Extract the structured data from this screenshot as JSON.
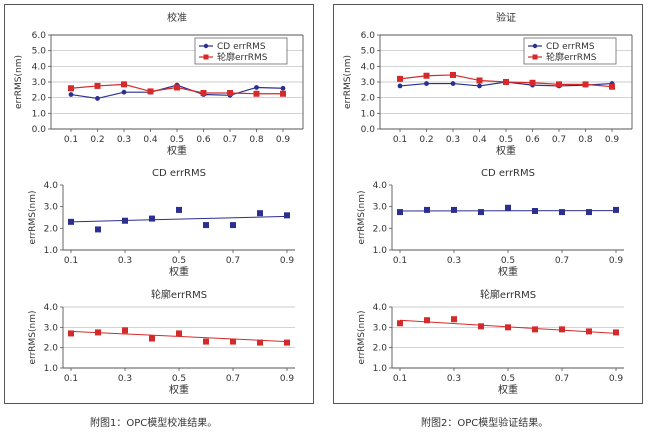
{
  "captions": {
    "left": "附图1：OPC模型校准结果。",
    "right": "附图2：OPC模型验证结果。"
  },
  "colors": {
    "cd": "#2b2f8f",
    "contour": "#d42a2a",
    "trend": "#2b2f8f",
    "trend_red": "#d42a2a",
    "grid": "#bbbbbb"
  },
  "chart_data": [
    {
      "id": "cal-combined",
      "type": "line",
      "title": "校准",
      "xlabel": "权重",
      "ylabel": "errRMS(nm)",
      "x": [
        0.1,
        0.2,
        0.3,
        0.4,
        0.5,
        0.6,
        0.7,
        0.8,
        0.9
      ],
      "xticks": [
        "0.1",
        "0.2",
        "0.3",
        "0.4",
        "0.5",
        "0.6",
        "0.7",
        "0.8",
        "0.9"
      ],
      "yticks": [
        "0.0",
        "1.0",
        "2.0",
        "3.0",
        "4.0",
        "5.0",
        "6.0"
      ],
      "ylim": [
        0,
        6
      ],
      "grid": true,
      "legend": "top-right",
      "series": [
        {
          "name": "CD errRMS",
          "marker": "circle",
          "color_key": "cd",
          "values": [
            2.2,
            1.95,
            2.35,
            2.35,
            2.8,
            2.2,
            2.15,
            2.65,
            2.6
          ]
        },
        {
          "name": "轮廓errRMS",
          "marker": "square",
          "color_key": "contour",
          "values": [
            2.6,
            2.75,
            2.85,
            2.4,
            2.65,
            2.3,
            2.3,
            2.25,
            2.25
          ]
        }
      ]
    },
    {
      "id": "cal-cd",
      "type": "scatter",
      "title": "CD errRMS",
      "xlabel": "权重",
      "ylabel": "errRMS(nm)",
      "x": [
        0.1,
        0.2,
        0.3,
        0.4,
        0.5,
        0.6,
        0.7,
        0.8,
        0.9
      ],
      "xticks": [
        "0.1",
        "0.3",
        "0.5",
        "0.7",
        "0.9"
      ],
      "yticks": [
        "1.0",
        "2.0",
        "3.0",
        "4.0"
      ],
      "ylim": [
        1,
        4
      ],
      "grid": false,
      "series": [
        {
          "marker": "square",
          "color_key": "cd",
          "values": [
            2.3,
            1.95,
            2.35,
            2.45,
            2.85,
            2.15,
            2.15,
            2.7,
            2.6
          ],
          "trend": [
            2.3,
            2.55
          ],
          "trend_color_key": "trend"
        }
      ]
    },
    {
      "id": "cal-contour",
      "type": "scatter",
      "title": "轮廓errRMS",
      "xlabel": "权重",
      "ylabel": "errRMS(nm)",
      "x": [
        0.1,
        0.2,
        0.3,
        0.4,
        0.5,
        0.6,
        0.7,
        0.8,
        0.9
      ],
      "xticks": [
        "0.1",
        "0.3",
        "0.5",
        "0.7",
        "0.9"
      ],
      "yticks": [
        "1.0",
        "2.0",
        "3.0",
        "4.0"
      ],
      "ylim": [
        1,
        4
      ],
      "grid": true,
      "series": [
        {
          "marker": "square",
          "color_key": "contour",
          "values": [
            2.7,
            2.75,
            2.85,
            2.45,
            2.7,
            2.3,
            2.3,
            2.25,
            2.25
          ],
          "trend": [
            2.8,
            2.3
          ],
          "trend_color_key": "trend_red"
        }
      ]
    },
    {
      "id": "val-combined",
      "type": "line",
      "title": "验证",
      "xlabel": "权重",
      "ylabel": "errRMS(nm)",
      "x": [
        0.1,
        0.2,
        0.3,
        0.4,
        0.5,
        0.6,
        0.7,
        0.8,
        0.9
      ],
      "xticks": [
        "0.1",
        "0.2",
        "0.3",
        "0.4",
        "0.5",
        "0.6",
        "0.7",
        "0.8",
        "0.9"
      ],
      "yticks": [
        "0.0",
        "1.0",
        "2.0",
        "3.0",
        "4.0",
        "5.0",
        "6.0"
      ],
      "ylim": [
        0,
        6
      ],
      "grid": true,
      "legend": "top-right",
      "series": [
        {
          "name": "CD errRMS",
          "marker": "circle",
          "color_key": "cd",
          "values": [
            2.75,
            2.9,
            2.9,
            2.75,
            3.0,
            2.8,
            2.75,
            2.8,
            2.9
          ]
        },
        {
          "name": "轮廓errRMS",
          "marker": "square",
          "color_key": "contour",
          "values": [
            3.2,
            3.4,
            3.45,
            3.1,
            3.0,
            2.95,
            2.85,
            2.85,
            2.7
          ]
        }
      ]
    },
    {
      "id": "val-cd",
      "type": "scatter",
      "title": "CD errRMS",
      "xlabel": "权重",
      "ylabel": "errRMS(nm)",
      "x": [
        0.1,
        0.2,
        0.3,
        0.4,
        0.5,
        0.6,
        0.7,
        0.8,
        0.9
      ],
      "xticks": [
        "0.1",
        "0.3",
        "0.5",
        "0.7",
        "0.9"
      ],
      "yticks": [
        "1.0",
        "2.0",
        "3.0",
        "4.0"
      ],
      "ylim": [
        1,
        4
      ],
      "grid": false,
      "series": [
        {
          "marker": "square",
          "color_key": "cd",
          "values": [
            2.75,
            2.85,
            2.85,
            2.75,
            2.95,
            2.8,
            2.75,
            2.75,
            2.85
          ],
          "trend": [
            2.8,
            2.82
          ],
          "trend_color_key": "trend"
        }
      ]
    },
    {
      "id": "val-contour",
      "type": "scatter",
      "title": "轮廓errRMS",
      "xlabel": "权重",
      "ylabel": "errRMS(nm)",
      "x": [
        0.1,
        0.2,
        0.3,
        0.4,
        0.5,
        0.6,
        0.7,
        0.8,
        0.9
      ],
      "xticks": [
        "0.1",
        "0.3",
        "0.5",
        "0.7",
        "0.9"
      ],
      "yticks": [
        "1.0",
        "2.0",
        "3.0",
        "4.0"
      ],
      "ylim": [
        1,
        4
      ],
      "grid": true,
      "series": [
        {
          "marker": "square",
          "color_key": "contour",
          "values": [
            3.2,
            3.35,
            3.4,
            3.05,
            3.0,
            2.9,
            2.9,
            2.8,
            2.75
          ],
          "trend": [
            3.35,
            2.7
          ],
          "trend_color_key": "trend_red"
        }
      ]
    }
  ]
}
